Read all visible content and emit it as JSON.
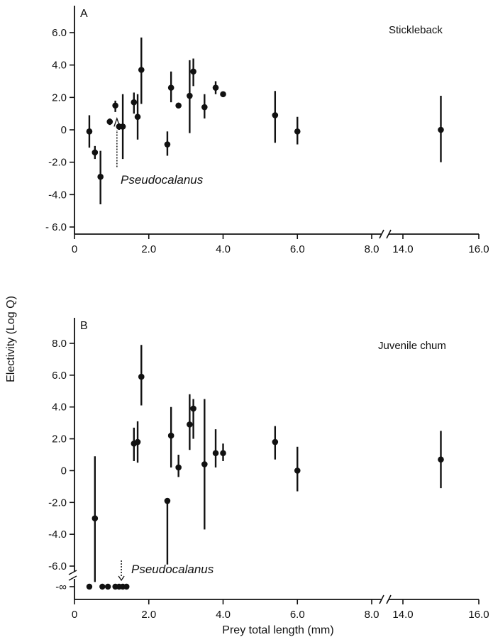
{
  "figure": {
    "ylabel": "Electivity (Log Q)",
    "xlabel": "Prey total length (mm)"
  },
  "chart_data": [
    {
      "type": "scatter",
      "panel_label": "A",
      "series_name": "Stickleback",
      "annotation": {
        "text": "Pseudocalanus",
        "x": 1.2,
        "y": 0.3
      },
      "xlim": [
        0,
        16.0
      ],
      "axis_break": {
        "from": 8.6,
        "to": 13.8
      },
      "xticks": [
        {
          "v": 0,
          "label": "0"
        },
        {
          "v": 2,
          "label": "2.0"
        },
        {
          "v": 4,
          "label": "4.0"
        },
        {
          "v": 6,
          "label": "6.0"
        },
        {
          "v": 8,
          "label": "8.0"
        },
        {
          "v": 14,
          "label": "14.0"
        },
        {
          "v": 16,
          "label": "16.0"
        }
      ],
      "ylim": [
        -6.0,
        6.0
      ],
      "yticks": [
        {
          "v": 6,
          "label": "6.0"
        },
        {
          "v": 4,
          "label": "4.0"
        },
        {
          "v": 2,
          "label": "2.0"
        },
        {
          "v": 0,
          "label": "0"
        },
        {
          "v": -2,
          "label": "-2.0"
        },
        {
          "v": -4,
          "label": "-4.0"
        },
        {
          "v": -6,
          "label": "- 6.0"
        }
      ],
      "points": [
        {
          "x": 0.4,
          "y": -0.1,
          "lo": -1.1,
          "hi": 0.9
        },
        {
          "x": 0.55,
          "y": -1.4,
          "lo": -1.8,
          "hi": -1.0
        },
        {
          "x": 0.7,
          "y": -2.9,
          "lo": -4.6,
          "hi": -1.3
        },
        {
          "x": 0.95,
          "y": 0.5,
          "lo": 0.3,
          "hi": 0.7
        },
        {
          "x": 1.1,
          "y": 1.5,
          "lo": 1.1,
          "hi": 1.8
        },
        {
          "x": 1.2,
          "y": 0.2,
          "lo": 0.0,
          "hi": 0.4
        },
        {
          "x": 1.3,
          "y": 0.2,
          "lo": -1.8,
          "hi": 2.2
        },
        {
          "x": 1.6,
          "y": 1.7,
          "lo": 1.0,
          "hi": 2.3
        },
        {
          "x": 1.7,
          "y": 0.8,
          "lo": -0.6,
          "hi": 2.2
        },
        {
          "x": 1.8,
          "y": 3.7,
          "lo": 1.6,
          "hi": 5.7
        },
        {
          "x": 2.5,
          "y": -0.9,
          "lo": -1.6,
          "hi": -0.1
        },
        {
          "x": 2.6,
          "y": 2.6,
          "lo": 1.7,
          "hi": 3.6
        },
        {
          "x": 2.8,
          "y": 1.5,
          "lo": 1.5,
          "hi": 1.5
        },
        {
          "x": 3.1,
          "y": 2.1,
          "lo": -0.2,
          "hi": 4.3
        },
        {
          "x": 3.2,
          "y": 3.6,
          "lo": 2.7,
          "hi": 4.4
        },
        {
          "x": 3.5,
          "y": 1.4,
          "lo": 0.7,
          "hi": 2.2
        },
        {
          "x": 3.8,
          "y": 2.6,
          "lo": 2.2,
          "hi": 3.0
        },
        {
          "x": 4.0,
          "y": 2.2,
          "lo": 2.2,
          "hi": 2.2
        },
        {
          "x": 5.4,
          "y": 0.9,
          "lo": -0.8,
          "hi": 2.4
        },
        {
          "x": 6.0,
          "y": -0.1,
          "lo": -0.9,
          "hi": 0.8
        },
        {
          "x": 15.0,
          "y": 0.0,
          "lo": -2.0,
          "hi": 2.1
        }
      ]
    },
    {
      "type": "scatter",
      "panel_label": "B",
      "series_name": "Juvenile chum",
      "annotation": {
        "text": "Pseudocalanus",
        "x": 1.3,
        "y": "-∞"
      },
      "xlim": [
        0,
        16.0
      ],
      "axis_break": {
        "from": 8.6,
        "to": 13.8
      },
      "xticks": [
        {
          "v": 0,
          "label": "0"
        },
        {
          "v": 2,
          "label": "2.0"
        },
        {
          "v": 4,
          "label": "4.0"
        },
        {
          "v": 6,
          "label": "6.0"
        },
        {
          "v": 8,
          "label": "8.0"
        },
        {
          "v": 14,
          "label": "14.0"
        },
        {
          "v": 16,
          "label": "16.0"
        }
      ],
      "ylim": [
        -6.0,
        8.0
      ],
      "yticks": [
        {
          "v": 8,
          "label": "8.0"
        },
        {
          "v": 6,
          "label": "6.0"
        },
        {
          "v": 4,
          "label": "4.0"
        },
        {
          "v": 2,
          "label": "2.0"
        },
        {
          "v": 0,
          "label": "0"
        },
        {
          "v": -2,
          "label": "-2.0"
        },
        {
          "v": -4,
          "label": "-4.0"
        },
        {
          "v": -6,
          "label": "-6.0"
        }
      ],
      "neg_inf_label": "-∞",
      "points": [
        {
          "x": 0.55,
          "y": -3.0,
          "lo": -7.0,
          "hi": 0.9
        },
        {
          "x": 1.6,
          "y": 1.7,
          "lo": 0.6,
          "hi": 2.7
        },
        {
          "x": 1.7,
          "y": 1.8,
          "lo": 0.5,
          "hi": 3.1
        },
        {
          "x": 1.8,
          "y": 5.9,
          "lo": 4.1,
          "hi": 7.9
        },
        {
          "x": 2.5,
          "y": -1.9,
          "lo": -5.9,
          "hi": -1.9
        },
        {
          "x": 2.6,
          "y": 2.2,
          "lo": 0.2,
          "hi": 4.0
        },
        {
          "x": 2.8,
          "y": 0.2,
          "lo": -0.4,
          "hi": 1.0
        },
        {
          "x": 3.1,
          "y": 2.9,
          "lo": 1.3,
          "hi": 4.8
        },
        {
          "x": 3.2,
          "y": 3.9,
          "lo": 2.0,
          "hi": 4.5
        },
        {
          "x": 3.5,
          "y": 0.4,
          "lo": -3.7,
          "hi": 4.5
        },
        {
          "x": 3.8,
          "y": 1.1,
          "lo": 0.2,
          "hi": 2.6
        },
        {
          "x": 4.0,
          "y": 1.1,
          "lo": 0.6,
          "hi": 1.7
        },
        {
          "x": 5.4,
          "y": 1.8,
          "lo": 0.7,
          "hi": 2.8
        },
        {
          "x": 6.0,
          "y": 0.0,
          "lo": -1.3,
          "hi": 1.5
        },
        {
          "x": 15.0,
          "y": 0.7,
          "lo": -1.1,
          "hi": 2.5
        }
      ],
      "neg_inf_points": [
        {
          "x": 0.4
        },
        {
          "x": 0.75
        },
        {
          "x": 0.9
        },
        {
          "x": 1.1
        },
        {
          "x": 1.2
        },
        {
          "x": 1.3
        },
        {
          "x": 1.4
        }
      ]
    }
  ]
}
